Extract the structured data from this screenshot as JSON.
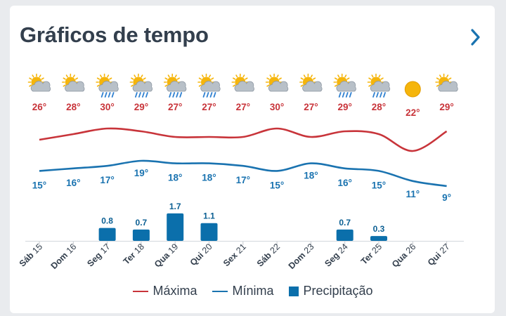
{
  "header": {
    "title": "Gráficos de tempo",
    "next_icon": "chevron-right-icon"
  },
  "colors": {
    "max": "#c8343a",
    "min": "#1a73b0",
    "precip": "#0b6fab",
    "sun": "#f5b50c",
    "cloud": "#b8c0c8",
    "rain": "#2d7fd0",
    "axis": "#333f4d"
  },
  "legend": {
    "max_label": "Máxima",
    "min_label": "Mínima",
    "precip_label": "Precipitação"
  },
  "chart_data": {
    "type": "line",
    "categories": [
      {
        "day": "Sáb",
        "date": "15"
      },
      {
        "day": "Dom",
        "date": "16"
      },
      {
        "day": "Seg",
        "date": "17"
      },
      {
        "day": "Ter",
        "date": "18"
      },
      {
        "day": "Qua",
        "date": "19"
      },
      {
        "day": "Qui",
        "date": "20"
      },
      {
        "day": "Sex",
        "date": "21"
      },
      {
        "day": "Sáb",
        "date": "22"
      },
      {
        "day": "Dom",
        "date": "23"
      },
      {
        "day": "Seg",
        "date": "24"
      },
      {
        "day": "Ter",
        "date": "25"
      },
      {
        "day": "Qua",
        "date": "26"
      },
      {
        "day": "Qui",
        "date": "27"
      }
    ],
    "icons": [
      "partly-sunny-icon",
      "partly-sunny-icon",
      "rain-sun-icon",
      "rain-sun-icon",
      "rain-sun-icon",
      "rain-sun-icon",
      "partly-sunny-icon",
      "partly-sunny-icon",
      "partly-sunny-icon",
      "rain-sun-icon",
      "rain-sun-icon",
      "sun-icon",
      "partly-sunny-icon"
    ],
    "series": [
      {
        "name": "Máxima",
        "values": [
          26,
          28,
          30,
          29,
          27,
          27,
          27,
          30,
          27,
          29,
          28,
          22,
          29
        ]
      },
      {
        "name": "Mínima",
        "values": [
          15,
          16,
          17,
          19,
          18,
          18,
          17,
          15,
          18,
          16,
          15,
          11,
          9
        ]
      },
      {
        "name": "Precipitação",
        "type": "bar",
        "values": [
          null,
          null,
          0.8,
          0.7,
          1.7,
          1.1,
          null,
          null,
          null,
          0.7,
          0.3,
          null,
          null
        ]
      }
    ],
    "temp_label_suffix": "°",
    "legend_position": "bottom"
  }
}
